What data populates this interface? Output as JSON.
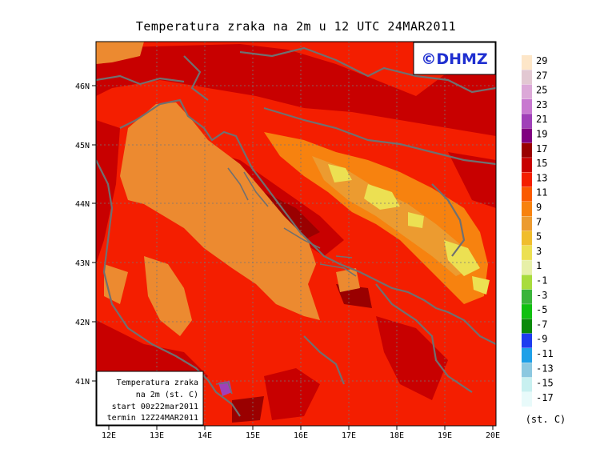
{
  "title": "Temperatura zraka na 2m u 12 UTC 24MAR2011",
  "logo": "©DHMZ",
  "map": {
    "lon_labels": [
      "12E",
      "13E",
      "14E",
      "15E",
      "16E",
      "17E",
      "18E",
      "19E",
      "20E"
    ],
    "lat_labels": [
      "41N",
      "42N",
      "43N",
      "44N",
      "45N",
      "46N"
    ]
  },
  "info_box": {
    "line1": "Temperatura zraka",
    "line2": "na 2m (st. C)",
    "line3": "start 00z22mar2011",
    "line4": "termin 12Z24MAR2011"
  },
  "legend": {
    "unit": "(st. C)",
    "labels": [
      "29",
      "27",
      "25",
      "23",
      "21",
      "19",
      "17",
      "15",
      "13",
      "11",
      "9",
      "7",
      "5",
      "3",
      "1",
      "-1",
      "-3",
      "-5",
      "-7",
      "-9",
      "-11",
      "-13",
      "-15",
      "-17"
    ],
    "colors": [
      "#fde6c8",
      "#e2c8d2",
      "#dca8d8",
      "#c878d0",
      "#a040b8",
      "#800080",
      "#9a0000",
      "#c80000",
      "#f41e00",
      "#fa5a00",
      "#f7820f",
      "#ec9b30",
      "#f0bd2d",
      "#ece052",
      "#e7f0a8",
      "#a8dc3c",
      "#3ab43a",
      "#10c010",
      "#0a8a0a",
      "#1e3cf0",
      "#1ea0e8",
      "#8cc8e0",
      "#c8f0f0",
      "#e8fafa"
    ]
  },
  "colors": {
    "land_base": "#f41e00",
    "land_warm": "#c80000",
    "sea": "#ec8a30",
    "coast": "#707070",
    "highland": "#ece052"
  }
}
